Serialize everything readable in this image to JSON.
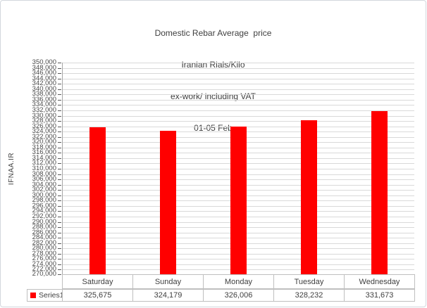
{
  "chart": {
    "title_lines": [
      "Domestic Rebar Average  price",
      "Iranian Rials/Kilo",
      "ex-work/ including VAT",
      "01-05 Feb"
    ]
  },
  "chart_data": {
    "type": "bar",
    "title": "Domestic Rebar Average price - Iranian Rials/Kilo - ex-work/ including VAT - 01-05 Feb",
    "categories": [
      "Saturday",
      "Sunday",
      "Monday",
      "Tuesday",
      "Wednesday"
    ],
    "series": [
      {
        "name": "Series1",
        "values": [
          325675,
          324179,
          326006,
          328232,
          331673
        ],
        "values_formatted": [
          "325,675",
          "324,179",
          "326,006",
          "328,232",
          "331,673"
        ],
        "color": "#ff0000"
      }
    ],
    "xlabel": "",
    "ylabel": "IFNAA.IR",
    "ylim": [
      270000,
      350000
    ],
    "ytick_step": 2000,
    "grid": true,
    "legend_position": "data-table-left"
  },
  "colors": {
    "bar": "#ff0000",
    "gridline": "#d9d9d9",
    "axis_line": "#a6a6a6",
    "tick_mark": "#5a5a5a",
    "table_border": "#bfbfbf",
    "text": "#404040"
  }
}
